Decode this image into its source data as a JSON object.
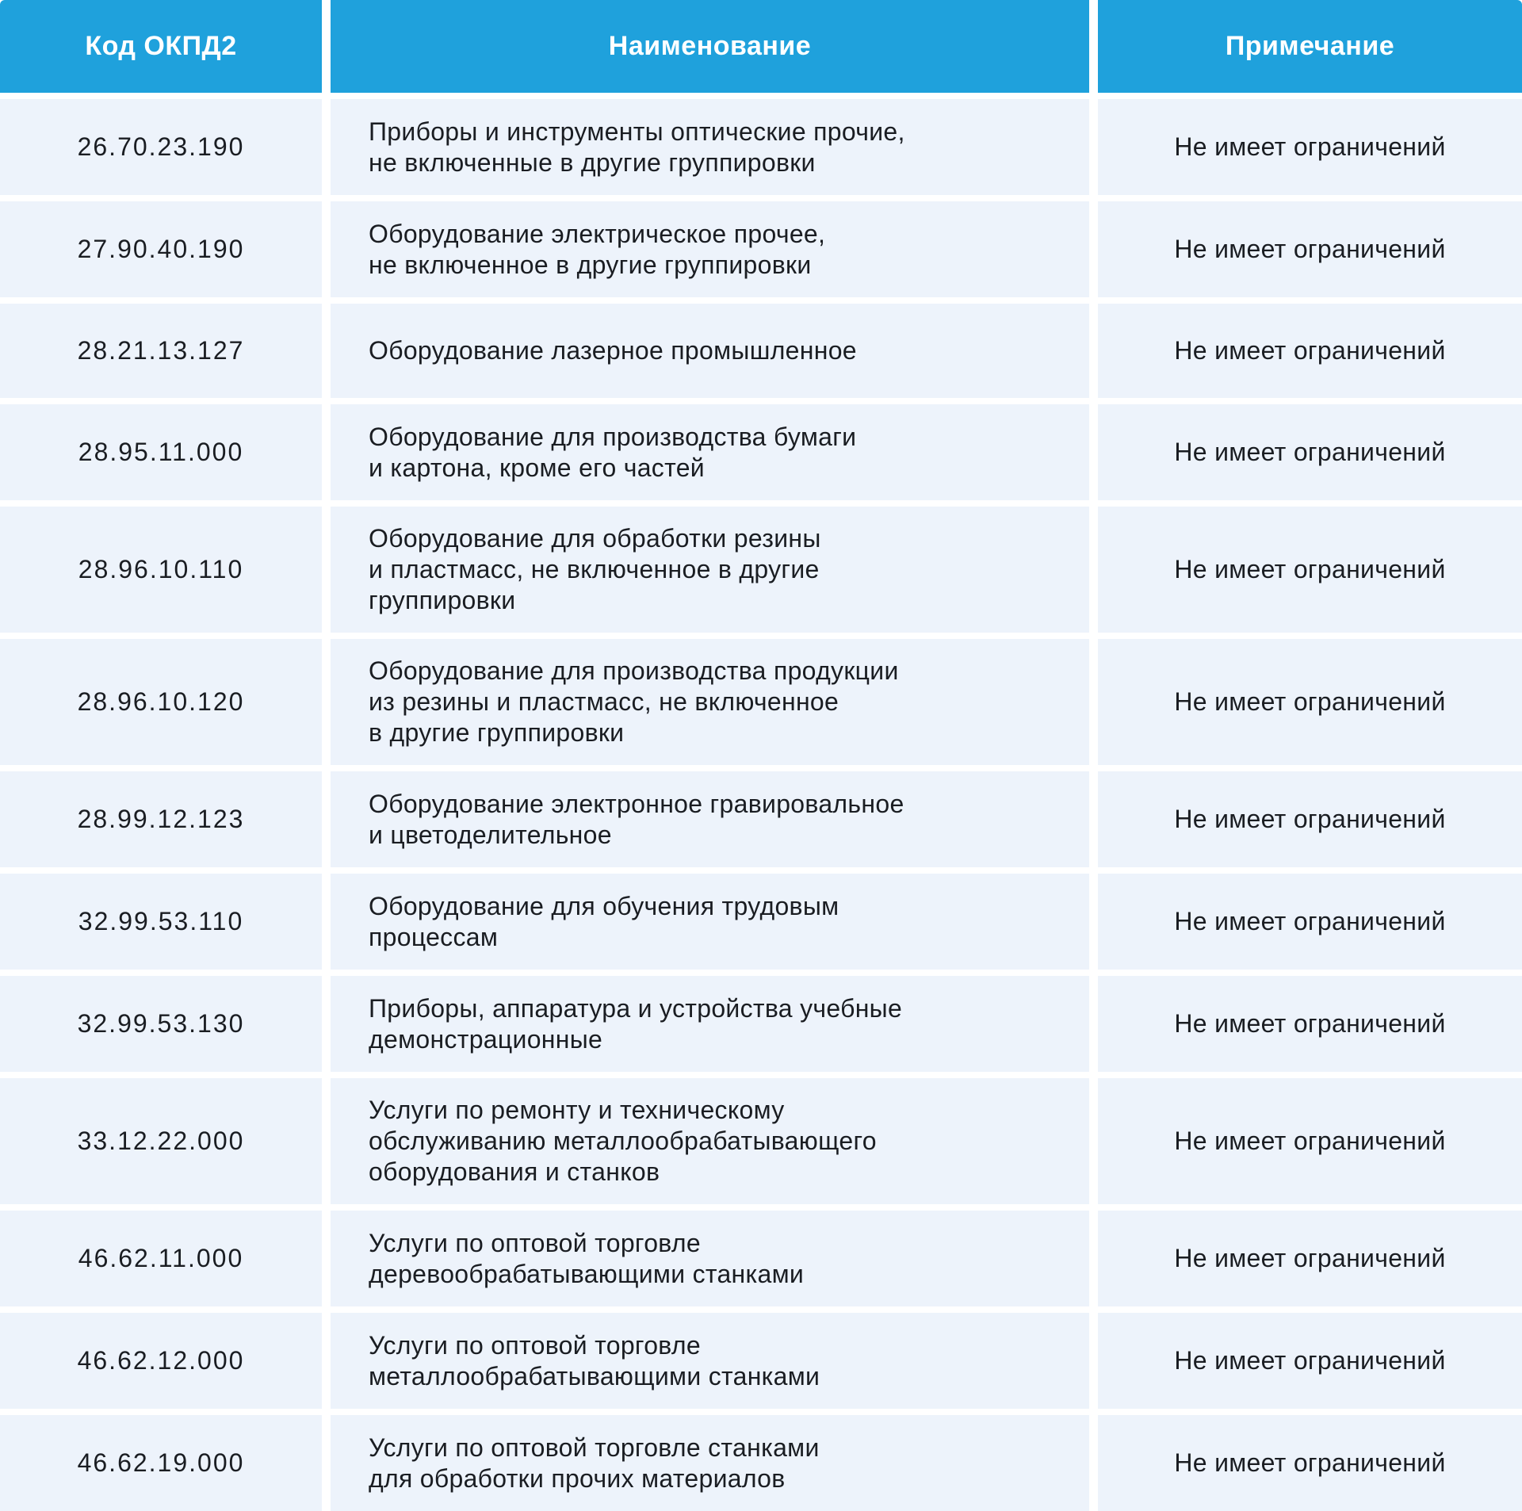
{
  "page": {
    "background": "#FFFFFF"
  },
  "table": {
    "colors": {
      "header_bg": "#1FA1DC",
      "header_text": "#FFFFFF",
      "cell_bg": "#EDF3FB",
      "cell_text": "#1A1D22",
      "gap": "#FFFFFF"
    },
    "columns": [
      "Код ОКПД2",
      "Наименование",
      "Примечание"
    ],
    "rows": [
      {
        "code": "26.70.23.190",
        "name": "Приборы и инструменты оптические прочие,\nне включенные в другие группировки",
        "note": "Не имеет ограничений"
      },
      {
        "code": "27.90.40.190",
        "name": "Оборудование электрическое прочее,\nне включенное в другие группировки",
        "note": "Не имеет ограничений"
      },
      {
        "code": "28.21.13.127",
        "name": "Оборудование лазерное промышленное",
        "note": "Не имеет ограничений"
      },
      {
        "code": "28.95.11.000",
        "name": "Оборудование для производства бумаги\nи картона, кроме его частей",
        "note": "Не имеет ограничений"
      },
      {
        "code": "28.96.10.110",
        "name": "Оборудование для обработки резины\nи пластмасс, не включенное в другие\nгруппировки",
        "note": "Не имеет ограничений"
      },
      {
        "code": "28.96.10.120",
        "name": "Оборудование для производства продукции\nиз резины и пластмасс, не включенное\nв другие группировки",
        "note": "Не имеет ограничений"
      },
      {
        "code": "28.99.12.123",
        "name": "Оборудование электронное гравировальное\nи цветоделительное",
        "note": "Не имеет ограничений"
      },
      {
        "code": "32.99.53.110",
        "name": "Оборудование для обучения трудовым\nпроцессам",
        "note": "Не имеет ограничений"
      },
      {
        "code": "32.99.53.130",
        "name": "Приборы, аппаратура и устройства учебные\nдемонстрационные",
        "note": "Не имеет ограничений"
      },
      {
        "code": "33.12.22.000",
        "name": "Услуги по ремонту и техническому\nобслуживанию металлообрабатывающего\nоборудования и станков",
        "note": "Не имеет ограничений"
      },
      {
        "code": "46.62.11.000",
        "name": "Услуги по оптовой торговле\nдеревообрабатывающими станками",
        "note": "Не имеет ограничений"
      },
      {
        "code": "46.62.12.000",
        "name": "Услуги по оптовой торговле\nметаллообрабатывающими станками",
        "note": "Не имеет ограничений"
      },
      {
        "code": "46.62.19.000",
        "name": "Услуги по оптовой торговле станками\nдля обработки прочих материалов",
        "note": "Не имеет ограничений"
      }
    ]
  }
}
